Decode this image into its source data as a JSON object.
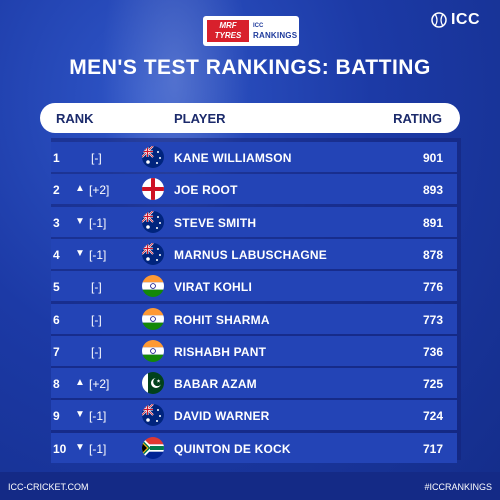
{
  "header_logo": {
    "brand": "MRF TYRES",
    "line1": "ICC",
    "line2": "RANKINGS"
  },
  "icc_logo": {
    "text": "ICC"
  },
  "title": "MEN'S TEST RANKINGS: BATTING",
  "table": {
    "columns": {
      "rank": "RANK",
      "player": "PLAYER",
      "rating": "RATING"
    },
    "rows": [
      {
        "rank": "1",
        "arrow": "",
        "change": "[-]",
        "flag": "australia",
        "player": "KANE WILLIAMSON",
        "rating": "901"
      },
      {
        "rank": "2",
        "arrow": "▲",
        "change": "[+2]",
        "flag": "england",
        "player": "JOE ROOT",
        "rating": "893"
      },
      {
        "rank": "3",
        "arrow": "▼",
        "change": "[-1]",
        "flag": "australia",
        "player": "STEVE SMITH",
        "rating": "891"
      },
      {
        "rank": "4",
        "arrow": "▼",
        "change": "[-1]",
        "flag": "australia",
        "player": "MARNUS LABUSCHAGNE",
        "rating": "878"
      },
      {
        "rank": "5",
        "arrow": "",
        "change": "[-]",
        "flag": "india",
        "player": "VIRAT KOHLI",
        "rating": "776"
      },
      {
        "rank": "6",
        "arrow": "",
        "change": "[-]",
        "flag": "india",
        "player": "ROHIT SHARMA",
        "rating": "773"
      },
      {
        "rank": "7",
        "arrow": "",
        "change": "[-]",
        "flag": "india",
        "player": "RISHABH PANT",
        "rating": "736"
      },
      {
        "rank": "8",
        "arrow": "▲",
        "change": "[+2]",
        "flag": "pakistan",
        "player": "BABAR AZAM",
        "rating": "725"
      },
      {
        "rank": "9",
        "arrow": "▼",
        "change": "[-1]",
        "flag": "australia",
        "player": "DAVID WARNER",
        "rating": "724"
      },
      {
        "rank": "10",
        "arrow": "▼",
        "change": "[-1]",
        "flag": "south-africa",
        "player": "QUINTON DE KOCK",
        "rating": "717"
      }
    ]
  },
  "footer": {
    "left": "ICC-CRICKET.COM",
    "right": "#ICCRANKINGS"
  },
  "colors": {
    "background": "#1c3aa6",
    "row": "#2344b6",
    "header_text": "#1b2a6b",
    "mrf_red": "#d8202c"
  }
}
